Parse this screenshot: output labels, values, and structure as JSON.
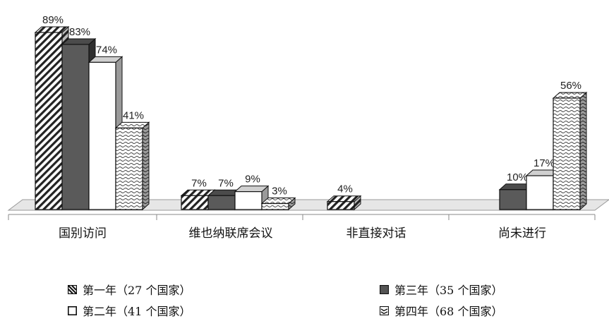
{
  "chart_data": {
    "type": "bar",
    "title": "",
    "xlabel": "",
    "ylabel": "",
    "ylim": [
      0,
      100
    ],
    "value_suffix": "%",
    "categories": [
      "国别访问",
      "维也纳联席会议",
      "非直接对话",
      "尚未进行"
    ],
    "series": [
      {
        "name": "第一年（27 个国家）",
        "values": [
          89,
          7,
          4,
          null
        ],
        "pattern": "diagonal-stripes",
        "color": "#ffffff"
      },
      {
        "name": "第三年（35 个国家）",
        "values": [
          83,
          7,
          null,
          10
        ],
        "pattern": "solid-dark",
        "color": "#555555"
      },
      {
        "name": "第二年（41 个国家）",
        "values": [
          74,
          9,
          null,
          17
        ],
        "pattern": "solid-white",
        "color": "#ffffff"
      },
      {
        "name": "第四年（68 个国家）",
        "values": [
          41,
          3,
          null,
          56
        ],
        "pattern": "wave",
        "color": "#ffffff"
      }
    ],
    "grid": false,
    "legend_position": "bottom"
  }
}
